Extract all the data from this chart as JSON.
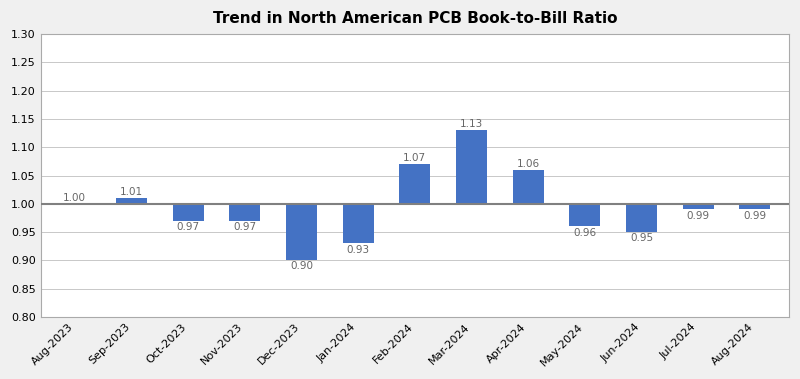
{
  "title": "Trend in North American PCB Book-to-Bill Ratio",
  "categories": [
    "Aug-2023",
    "Sep-2023",
    "Oct-2023",
    "Nov-2023",
    "Dec-2023",
    "Jan-2024",
    "Feb-2024",
    "Mar-2024",
    "Apr-2024",
    "May-2024",
    "Jun-2024",
    "Jul-2024",
    "Aug-2024"
  ],
  "values": [
    1.0,
    1.01,
    0.97,
    0.97,
    0.9,
    0.93,
    1.07,
    1.13,
    1.06,
    0.96,
    0.95,
    0.99,
    0.99
  ],
  "bar_color": "#4472C4",
  "reference_line": 1.0,
  "reference_line_color": "#808080",
  "ylim": [
    0.8,
    1.3
  ],
  "yticks": [
    0.8,
    0.85,
    0.9,
    0.95,
    1.0,
    1.05,
    1.1,
    1.15,
    1.2,
    1.25,
    1.3
  ],
  "ytick_labels": [
    "0.80",
    "0.85",
    "0.90",
    "0.95",
    "1.00",
    "1.05",
    "1.10",
    "1.15",
    "1.20",
    "1.25",
    "1.30"
  ],
  "grid_color": "#C8C8C8",
  "background_color": "#FFFFFF",
  "plot_bg_color": "#FFFFFF",
  "outer_bg_color": "#F0F0F0",
  "border_color": "#AAAAAA",
  "title_fontsize": 11,
  "tick_label_fontsize": 8,
  "annotation_fontsize": 7.5,
  "annotation_color": "#666666",
  "bar_width": 0.55
}
